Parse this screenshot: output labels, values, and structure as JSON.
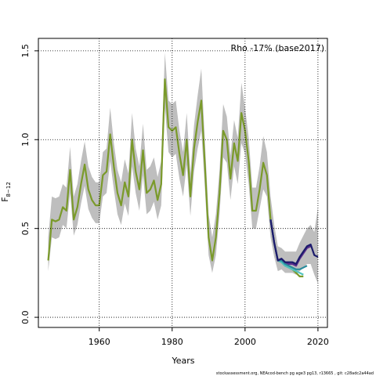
{
  "chart_data": {
    "type": "line",
    "annotation": "Rho -17% (base2017)",
    "xlabel": "Years",
    "ylabel": "F",
    "ylabel_sub": "8−12",
    "footnote": "stockassessment.org, NEAcod-bench pg age3 pg13, r13665 , git: c28adc2a44ad",
    "xlim": [
      1943.3,
      2022.6
    ],
    "ylim": [
      -0.057,
      1.57
    ],
    "xticks": [
      1960,
      1980,
      2000,
      2020
    ],
    "yticks": [
      {
        "value": 0,
        "label": "0.0"
      },
      0.5,
      {
        "value": 1,
        "label": "1.0"
      },
      1.5
    ],
    "grid": true,
    "x": [
      1946,
      1947,
      1948,
      1949,
      1950,
      1951,
      1952,
      1953,
      1954,
      1955,
      1956,
      1957,
      1958,
      1959,
      1960,
      1961,
      1962,
      1963,
      1964,
      1965,
      1966,
      1967,
      1968,
      1969,
      1970,
      1971,
      1972,
      1973,
      1974,
      1975,
      1976,
      1977,
      1978,
      1979,
      1980,
      1981,
      1982,
      1983,
      1984,
      1985,
      1986,
      1987,
      1988,
      1989,
      1990,
      1991,
      1992,
      1993,
      1994,
      1995,
      1996,
      1997,
      1998,
      1999,
      2000,
      2001,
      2002,
      2003,
      2004,
      2005,
      2006,
      2007,
      2008,
      2009,
      2010,
      2011,
      2012,
      2013,
      2014,
      2015,
      2016,
      2017,
      2018,
      2019,
      2020
    ],
    "band": {
      "color": "#bebebe",
      "upper": [
        0.45,
        0.68,
        0.67,
        0.68,
        0.75,
        0.73,
        0.96,
        0.68,
        0.75,
        0.88,
        0.99,
        0.85,
        0.79,
        0.76,
        0.76,
        0.93,
        0.95,
        1.18,
        0.98,
        0.83,
        0.76,
        0.89,
        0.81,
        1.15,
        0.95,
        0.85,
        1.09,
        0.83,
        0.85,
        0.9,
        0.79,
        0.88,
        1.49,
        1.22,
        1.2,
        1.22,
        1.05,
        0.93,
        1.15,
        0.81,
        1.08,
        1.25,
        1.4,
        0.98,
        0.58,
        0.45,
        0.58,
        0.83,
        1.2,
        1.13,
        0.91,
        1.11,
        1.01,
        1.32,
        1.18,
        1.01,
        0.73,
        0.73,
        0.85,
        1.02,
        0.93,
        0.68,
        0.52,
        0.4,
        0.39,
        0.37,
        0.37,
        0.37,
        0.37,
        0.42,
        0.46,
        0.5,
        0.52,
        0.48,
        0.62
      ],
      "lower": [
        0.26,
        0.45,
        0.44,
        0.45,
        0.52,
        0.5,
        0.7,
        0.46,
        0.52,
        0.64,
        0.74,
        0.61,
        0.56,
        0.53,
        0.53,
        0.68,
        0.7,
        0.88,
        0.72,
        0.58,
        0.52,
        0.64,
        0.57,
        0.85,
        0.7,
        0.6,
        0.8,
        0.58,
        0.6,
        0.65,
        0.55,
        0.63,
        1.18,
        0.93,
        0.9,
        0.92,
        0.78,
        0.68,
        0.86,
        0.57,
        0.82,
        0.95,
        1.05,
        0.72,
        0.35,
        0.25,
        0.35,
        0.58,
        0.9,
        0.87,
        0.66,
        0.85,
        0.75,
        0.98,
        0.92,
        0.75,
        0.5,
        0.5,
        0.61,
        0.72,
        0.68,
        0.45,
        0.34,
        0.26,
        0.27,
        0.25,
        0.25,
        0.25,
        0.24,
        0.26,
        0.28,
        0.3,
        0.3,
        0.24,
        0.19
      ]
    },
    "series": [
      {
        "color": "#1b1b6b",
        "x": [
          2007,
          2008,
          2009,
          2010,
          2011,
          2012,
          2013,
          2014,
          2015,
          2016,
          2017,
          2018,
          2019,
          2020
        ],
        "values": [
          0.55,
          0.42,
          0.32,
          0.33,
          0.31,
          0.31,
          0.31,
          0.3,
          0.34,
          0.37,
          0.4,
          0.41,
          0.35,
          0.34
        ]
      },
      {
        "color": "#5b2d8c",
        "x": [
          2007,
          2008,
          2009,
          2010,
          2011,
          2012,
          2013,
          2014,
          2015,
          2016,
          2017,
          2018
        ],
        "values": [
          0.55,
          0.42,
          0.32,
          0.33,
          0.31,
          0.3,
          0.3,
          0.29,
          0.33,
          0.36,
          0.39,
          0.4
        ]
      },
      {
        "color": "#2a8c9c",
        "x": [
          2007,
          2008,
          2009,
          2010,
          2011,
          2012,
          2013,
          2014,
          2015,
          2016,
          2017
        ],
        "values": [
          0.55,
          0.42,
          0.32,
          0.32,
          0.3,
          0.29,
          0.28,
          0.27,
          0.27,
          0.28,
          0.29
        ]
      },
      {
        "color": "#52c3c0",
        "x": [
          2007,
          2008,
          2009,
          2010,
          2011,
          2012,
          2013,
          2014,
          2015,
          2016
        ],
        "values": [
          0.55,
          0.42,
          0.32,
          0.31,
          0.29,
          0.28,
          0.27,
          0.26,
          0.25,
          0.24
        ]
      },
      {
        "color": "#7a9a2a",
        "values": [
          0.32,
          0.55,
          0.54,
          0.55,
          0.62,
          0.6,
          0.83,
          0.55,
          0.62,
          0.75,
          0.86,
          0.72,
          0.66,
          0.63,
          0.63,
          0.8,
          0.82,
          1.03,
          0.85,
          0.7,
          0.63,
          0.76,
          0.68,
          1.0,
          0.82,
          0.72,
          0.94,
          0.7,
          0.72,
          0.77,
          0.66,
          0.75,
          1.34,
          1.07,
          1.05,
          1.07,
          0.92,
          0.8,
          1.0,
          0.68,
          0.95,
          1.1,
          1.22,
          0.85,
          0.45,
          0.32,
          0.45,
          0.7,
          1.05,
          1.0,
          0.78,
          0.98,
          0.88,
          1.15,
          1.05,
          0.88,
          0.6,
          0.6,
          0.72,
          0.87,
          0.8,
          0.55,
          0.42,
          0.32,
          0.31,
          0.29,
          0.28,
          0.27,
          0.25,
          0.23,
          0.23,
          null,
          null,
          null,
          null
        ]
      }
    ]
  }
}
